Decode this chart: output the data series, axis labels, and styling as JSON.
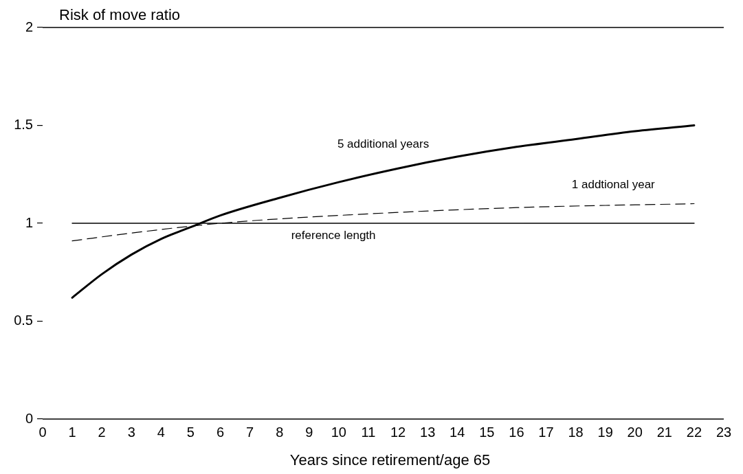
{
  "chart_data": {
    "type": "line",
    "xlabel": "Years since retirement/age 65",
    "ylabel": "Risk of move ratio",
    "xlim": [
      0,
      23
    ],
    "xticks": [
      0,
      1,
      2,
      3,
      4,
      5,
      6,
      7,
      8,
      9,
      10,
      11,
      12,
      13,
      14,
      15,
      16,
      17,
      18,
      19,
      20,
      21,
      22,
      23
    ],
    "ylim": [
      0,
      2
    ],
    "yticks": [
      0,
      0.5,
      1,
      1.5,
      2
    ],
    "grid": false,
    "legend": false,
    "marker": "none",
    "series": [
      {
        "name": "5 additional years",
        "color": "#000000",
        "line_style": "solid",
        "x": [
          1,
          2,
          3,
          4,
          5,
          6,
          8,
          10,
          12,
          14,
          16,
          18,
          20,
          22
        ],
        "values": [
          0.62,
          0.74,
          0.84,
          0.92,
          0.98,
          1.04,
          1.13,
          1.21,
          1.28,
          1.34,
          1.39,
          1.43,
          1.47,
          1.5
        ]
      },
      {
        "name": "1 addtional year",
        "color": "#000000",
        "line_style": "dashed",
        "x": [
          1,
          3,
          6,
          10,
          16,
          22
        ],
        "values": [
          0.91,
          0.95,
          1.0,
          1.04,
          1.08,
          1.1
        ]
      },
      {
        "name": "reference length",
        "color": "#000000",
        "line_style": "solid",
        "x": [
          1,
          22
        ],
        "values": [
          1,
          1
        ]
      }
    ]
  }
}
